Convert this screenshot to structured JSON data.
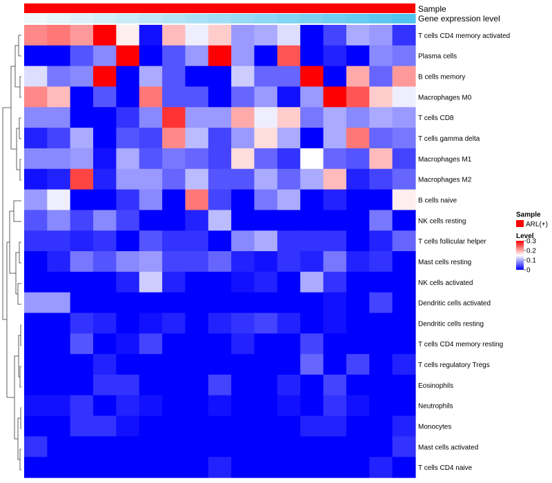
{
  "chart_data": {
    "type": "heatmap",
    "title": "",
    "annotations": {
      "sample_label": "Sample",
      "expression_label": "Gene expression level"
    },
    "legend": {
      "sample_title": "Sample",
      "sample_item": "ARL(+)",
      "sample_color": "#ff0000",
      "level_title": "Level",
      "level_ticks": [
        "0.3",
        "0.2",
        "0.1",
        "0"
      ],
      "level_range": [
        0,
        0.3
      ]
    },
    "colors": {
      "low": "#0000ff",
      "mid": "#ffffff",
      "high": "#ff0000"
    },
    "expression_gradient": [
      "#f0f8fb",
      "#52c3f0"
    ],
    "rows": [
      "T cells CD4 memory activated",
      "Plasma cells",
      "B cells memory",
      "Macrophages M0",
      "T cells CD8",
      "T cells gamma delta",
      "Macrophages M1",
      "Macrophages M2",
      "B cells naive",
      "NK cells resting",
      "T cells follicular helper",
      "Mast cells resting",
      "NK cells activated",
      "Dendritic cells activated",
      "Dendritic cells resting",
      "T cells CD4 memory resting",
      "T cells regulatory  Tregs",
      "Eosinophils",
      "Neutrophils",
      "Monocytes",
      "Mast cells activated",
      "T cells CD4 naive"
    ],
    "values": [
      [
        0.22,
        0.23,
        0.21,
        0.3,
        0.16,
        0.01,
        0.19,
        0.14,
        0.18,
        0.09,
        0.1,
        0.13,
        0.0,
        0.04,
        0.1,
        0.09,
        0.03
      ],
      [
        0.0,
        0.0,
        0.05,
        0.08,
        0.3,
        0.0,
        0.05,
        0.09,
        0.3,
        0.09,
        0.0,
        0.25,
        0.0,
        0.02,
        0.0,
        0.08,
        0.07
      ],
      [
        0.13,
        0.07,
        0.08,
        0.3,
        0.0,
        0.1,
        0.05,
        0.0,
        0.0,
        0.12,
        0.06,
        0.06,
        0.3,
        0.0,
        0.2,
        0.06,
        0.21
      ],
      [
        0.22,
        0.19,
        0.0,
        0.05,
        0.0,
        0.23,
        0.05,
        0.05,
        0.0,
        0.06,
        0.09,
        0.01,
        0.09,
        0.3,
        0.25,
        0.18,
        0.14
      ],
      [
        0.08,
        0.08,
        0.0,
        0.0,
        0.03,
        0.08,
        0.27,
        0.09,
        0.09,
        0.2,
        0.14,
        0.18,
        0.07,
        0.1,
        0.08,
        0.1,
        0.09
      ],
      [
        0.02,
        0.04,
        0.1,
        0.0,
        0.05,
        0.04,
        0.22,
        0.11,
        0.04,
        0.09,
        0.17,
        0.1,
        0.0,
        0.1,
        0.23,
        0.06,
        0.07
      ],
      [
        0.08,
        0.08,
        0.09,
        0.01,
        0.1,
        0.05,
        0.07,
        0.06,
        0.04,
        0.17,
        0.06,
        0.03,
        0.15,
        0.06,
        0.05,
        0.19,
        0.04
      ],
      [
        0.01,
        0.02,
        0.26,
        0.02,
        0.09,
        0.09,
        0.06,
        0.11,
        0.05,
        0.05,
        0.1,
        0.06,
        0.1,
        0.19,
        0.02,
        0.04,
        0.06
      ],
      [
        0.09,
        0.14,
        0.0,
        0.0,
        0.03,
        0.08,
        0.0,
        0.23,
        0.04,
        0.0,
        0.07,
        0.1,
        0.0,
        0.02,
        0.0,
        0.0,
        0.16
      ],
      [
        0.05,
        0.08,
        0.04,
        0.08,
        0.04,
        0.0,
        0.0,
        0.02,
        0.11,
        0.0,
        0.0,
        0.0,
        0.0,
        0.0,
        0.0,
        0.07,
        0.0
      ],
      [
        0.03,
        0.03,
        0.02,
        0.03,
        0.0,
        0.05,
        0.03,
        0.03,
        0.0,
        0.08,
        0.1,
        0.03,
        0.03,
        0.03,
        0.0,
        0.02,
        0.06
      ],
      [
        0.0,
        0.02,
        0.07,
        0.05,
        0.08,
        0.09,
        0.04,
        0.04,
        0.06,
        0.02,
        0.01,
        0.03,
        0.02,
        0.07,
        0.02,
        0.03,
        0.0
      ],
      [
        0.0,
        0.0,
        0.0,
        0.0,
        0.02,
        0.12,
        0.02,
        0.0,
        0.0,
        0.01,
        0.02,
        0.0,
        0.1,
        0.03,
        0.0,
        0.0,
        0.0
      ],
      [
        0.09,
        0.09,
        0.0,
        0.0,
        0.0,
        0.0,
        0.0,
        0.0,
        0.0,
        0.0,
        0.0,
        0.0,
        0.0,
        0.01,
        0.0,
        0.04,
        0.0
      ],
      [
        0.0,
        0.0,
        0.03,
        0.02,
        0.0,
        0.01,
        0.02,
        0.0,
        0.02,
        0.03,
        0.04,
        0.02,
        0.0,
        0.01,
        0.0,
        0.0,
        0.0
      ],
      [
        0.0,
        0.0,
        0.05,
        0.0,
        0.01,
        0.04,
        0.0,
        0.0,
        0.0,
        0.02,
        0.0,
        0.0,
        0.04,
        0.0,
        0.0,
        0.0,
        0.0
      ],
      [
        0.0,
        0.0,
        0.0,
        0.02,
        0.0,
        0.0,
        0.0,
        0.0,
        0.0,
        0.0,
        0.0,
        0.0,
        0.06,
        0.0,
        0.04,
        0.0,
        0.02
      ],
      [
        0.0,
        0.0,
        0.0,
        0.03,
        0.03,
        0.0,
        0.0,
        0.0,
        0.04,
        0.0,
        0.0,
        0.02,
        0.0,
        0.04,
        0.0,
        0.0,
        0.0
      ],
      [
        0.01,
        0.01,
        0.03,
        0.0,
        0.02,
        0.01,
        0.0,
        0.0,
        0.01,
        0.0,
        0.0,
        0.01,
        0.0,
        0.03,
        0.01,
        0.0,
        0.0
      ],
      [
        0.0,
        0.0,
        0.03,
        0.03,
        0.01,
        0.0,
        0.0,
        0.0,
        0.0,
        0.0,
        0.0,
        0.0,
        0.02,
        0.02,
        0.0,
        0.0,
        0.02
      ],
      [
        0.03,
        0.0,
        0.0,
        0.0,
        0.0,
        0.0,
        0.0,
        0.0,
        0.0,
        0.0,
        0.0,
        0.0,
        0.0,
        0.0,
        0.0,
        0.0,
        0.03
      ],
      [
        0.0,
        0.0,
        0.0,
        0.0,
        0.0,
        0.0,
        0.0,
        0.0,
        0.02,
        0.0,
        0.0,
        0.0,
        0.0,
        0.0,
        0.0,
        0.02,
        0.0
      ]
    ]
  }
}
